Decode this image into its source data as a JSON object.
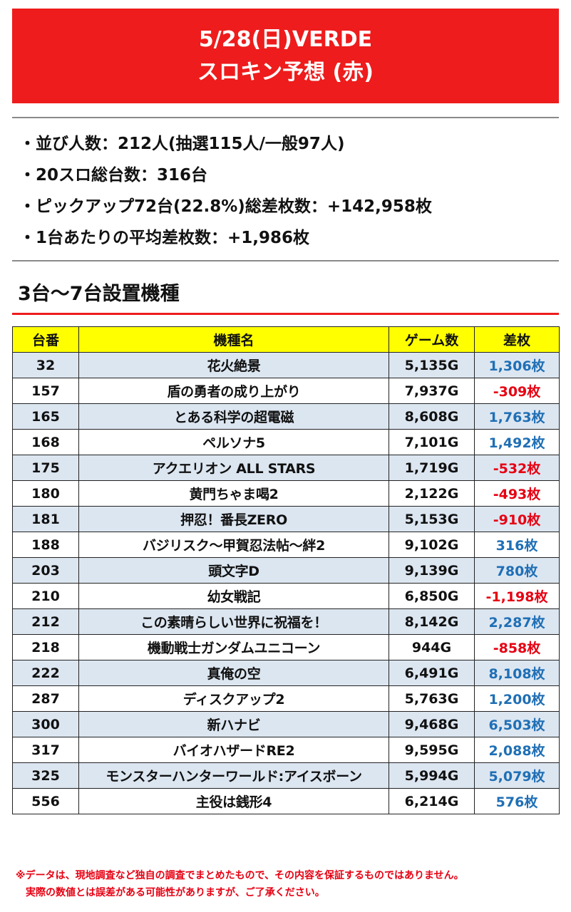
{
  "header": {
    "line1": "5/28(日)VERDE",
    "line2": "スロキン予想 (赤)"
  },
  "stats": [
    "・並び人数：212人(抽選115人/一般97人)",
    "・20スロ総台数：316台",
    "・ピックアップ72台(22.8%)総差枚数：+142,958枚",
    "・1台あたりの平均差枚数：+1,986枚"
  ],
  "section_title": "3台～7台設置機種",
  "table": {
    "headers": [
      "台番",
      "機種名",
      "ゲーム数",
      "差枚"
    ],
    "rows": [
      {
        "no": "32",
        "name": "花火絶景",
        "games": "5,135G",
        "diff": "1,306枚",
        "sign": "pos"
      },
      {
        "no": "157",
        "name": "盾の勇者の成り上がり",
        "games": "7,937G",
        "diff": "-309枚",
        "sign": "neg"
      },
      {
        "no": "165",
        "name": "とある科学の超電磁",
        "games": "8,608G",
        "diff": "1,763枚",
        "sign": "pos"
      },
      {
        "no": "168",
        "name": "ペルソナ5",
        "games": "7,101G",
        "diff": "1,492枚",
        "sign": "pos"
      },
      {
        "no": "175",
        "name": "アクエリオン ALL STARS",
        "games": "1,719G",
        "diff": "-532枚",
        "sign": "neg"
      },
      {
        "no": "180",
        "name": "黄門ちゃま喝2",
        "games": "2,122G",
        "diff": "-493枚",
        "sign": "neg"
      },
      {
        "no": "181",
        "name": "押忍！番長ZERO",
        "games": "5,153G",
        "diff": "-910枚",
        "sign": "neg"
      },
      {
        "no": "188",
        "name": "バジリスク～甲賀忍法帖～絆2",
        "games": "9,102G",
        "diff": "316枚",
        "sign": "pos"
      },
      {
        "no": "203",
        "name": "頭文字D",
        "games": "9,139G",
        "diff": "780枚",
        "sign": "pos"
      },
      {
        "no": "210",
        "name": "幼女戦記",
        "games": "6,850G",
        "diff": "-1,198枚",
        "sign": "neg"
      },
      {
        "no": "212",
        "name": "この素晴らしい世界に祝福を！",
        "games": "8,142G",
        "diff": "2,287枚",
        "sign": "pos"
      },
      {
        "no": "218",
        "name": "機動戦士ガンダムユニコーン",
        "games": "944G",
        "diff": "-858枚",
        "sign": "neg"
      },
      {
        "no": "222",
        "name": "真俺の空",
        "games": "6,491G",
        "diff": "8,108枚",
        "sign": "pos"
      },
      {
        "no": "287",
        "name": "ディスクアップ2",
        "games": "5,763G",
        "diff": "1,200枚",
        "sign": "pos"
      },
      {
        "no": "300",
        "name": "新ハナビ",
        "games": "9,468G",
        "diff": "6,503枚",
        "sign": "pos"
      },
      {
        "no": "317",
        "name": "バイオハザードRE2",
        "games": "9,595G",
        "diff": "2,088枚",
        "sign": "pos"
      },
      {
        "no": "325",
        "name": "モンスターハンターワールド:アイスボーン",
        "games": "5,994G",
        "diff": "5,079枚",
        "sign": "pos"
      },
      {
        "no": "556",
        "name": "主役は銭形4",
        "games": "6,214G",
        "diff": "576枚",
        "sign": "pos"
      }
    ]
  },
  "footnote": {
    "line1": "※データは、現地調査など独自の調査でまとめたもので、その内容を保証するものではありません。",
    "line2": "　実際の数値とは誤差がある可能性がありますが、ご了承ください。"
  },
  "colors": {
    "header_red": "#ee1c1c",
    "header_yellow": "#ffff00",
    "row_blue": "#dce6f1",
    "positive": "#1f6fb5",
    "negative": "#e60012"
  }
}
